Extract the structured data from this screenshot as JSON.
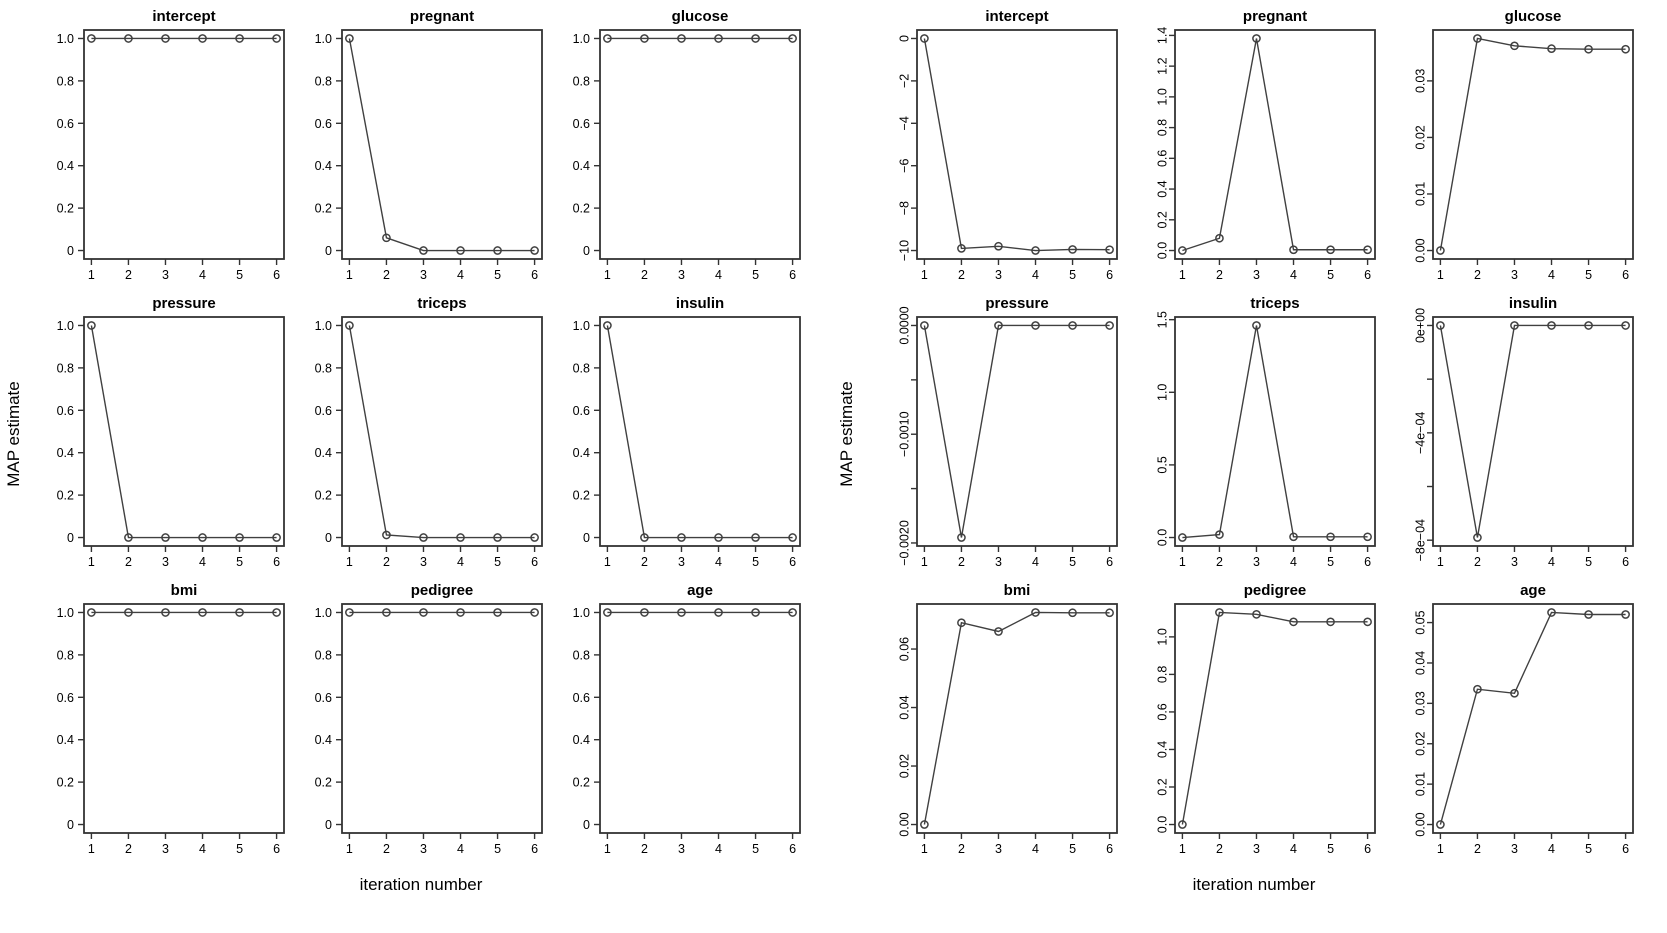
{
  "colors": {
    "line": "#404040",
    "frame": "#333333",
    "text": "#000000",
    "background": "#ffffff"
  },
  "chart_data": [
    {
      "id": "left-figure",
      "type": "line",
      "xlabel": "iteration number",
      "ylabel": "MAP estimate",
      "x": [
        1,
        2,
        3,
        4,
        5,
        6
      ],
      "xticks": [
        "1",
        "2",
        "3",
        "4",
        "5",
        "6"
      ],
      "ytick_style": "horizontal",
      "grid": false,
      "legend": null,
      "panels": [
        {
          "title": "intercept",
          "ylim": [
            0,
            1
          ],
          "yticks": [
            [
              0,
              "0"
            ],
            [
              0.2,
              "0.2"
            ],
            [
              0.4,
              "0.4"
            ],
            [
              0.6,
              "0.6"
            ],
            [
              0.8,
              "0.8"
            ],
            [
              1,
              "1.0"
            ]
          ],
          "values": [
            1,
            1,
            1,
            1,
            1,
            1
          ]
        },
        {
          "title": "pregnant",
          "ylim": [
            0,
            1
          ],
          "yticks": [
            [
              0,
              "0"
            ],
            [
              0.2,
              "0.2"
            ],
            [
              0.4,
              "0.4"
            ],
            [
              0.6,
              "0.6"
            ],
            [
              0.8,
              "0.8"
            ],
            [
              1,
              "1.0"
            ]
          ],
          "values": [
            1,
            0.06,
            0,
            0,
            0,
            0
          ]
        },
        {
          "title": "glucose",
          "ylim": [
            0,
            1
          ],
          "yticks": [
            [
              0,
              "0"
            ],
            [
              0.2,
              "0.2"
            ],
            [
              0.4,
              "0.4"
            ],
            [
              0.6,
              "0.6"
            ],
            [
              0.8,
              "0.8"
            ],
            [
              1,
              "1.0"
            ]
          ],
          "values": [
            1,
            1,
            1,
            1,
            1,
            1
          ]
        },
        {
          "title": "pressure",
          "ylim": [
            0,
            1
          ],
          "yticks": [
            [
              0,
              "0"
            ],
            [
              0.2,
              "0.2"
            ],
            [
              0.4,
              "0.4"
            ],
            [
              0.6,
              "0.6"
            ],
            [
              0.8,
              "0.8"
            ],
            [
              1,
              "1.0"
            ]
          ],
          "values": [
            1,
            0,
            0,
            0,
            0,
            0
          ]
        },
        {
          "title": "triceps",
          "ylim": [
            0,
            1
          ],
          "yticks": [
            [
              0,
              "0"
            ],
            [
              0.2,
              "0.2"
            ],
            [
              0.4,
              "0.4"
            ],
            [
              0.6,
              "0.6"
            ],
            [
              0.8,
              "0.8"
            ],
            [
              1,
              "1.0"
            ]
          ],
          "values": [
            1,
            0.012,
            0,
            0,
            0,
            0
          ]
        },
        {
          "title": "insulin",
          "ylim": [
            0,
            1
          ],
          "yticks": [
            [
              0,
              "0"
            ],
            [
              0.2,
              "0.2"
            ],
            [
              0.4,
              "0.4"
            ],
            [
              0.6,
              "0.6"
            ],
            [
              0.8,
              "0.8"
            ],
            [
              1,
              "1.0"
            ]
          ],
          "values": [
            1,
            0,
            0,
            0,
            0,
            0
          ]
        },
        {
          "title": "bmi",
          "ylim": [
            0,
            1
          ],
          "yticks": [
            [
              0,
              "0"
            ],
            [
              0.2,
              "0.2"
            ],
            [
              0.4,
              "0.4"
            ],
            [
              0.6,
              "0.6"
            ],
            [
              0.8,
              "0.8"
            ],
            [
              1,
              "1.0"
            ]
          ],
          "values": [
            1,
            1,
            1,
            1,
            1,
            1
          ]
        },
        {
          "title": "pedigree",
          "ylim": [
            0,
            1
          ],
          "yticks": [
            [
              0,
              "0"
            ],
            [
              0.2,
              "0.2"
            ],
            [
              0.4,
              "0.4"
            ],
            [
              0.6,
              "0.6"
            ],
            [
              0.8,
              "0.8"
            ],
            [
              1,
              "1.0"
            ]
          ],
          "values": [
            1,
            1,
            1,
            1,
            1,
            1
          ]
        },
        {
          "title": "age",
          "ylim": [
            0,
            1
          ],
          "yticks": [
            [
              0,
              "0"
            ],
            [
              0.2,
              "0.2"
            ],
            [
              0.4,
              "0.4"
            ],
            [
              0.6,
              "0.6"
            ],
            [
              0.8,
              "0.8"
            ],
            [
              1,
              "1.0"
            ]
          ],
          "values": [
            1,
            1,
            1,
            1,
            1,
            1
          ]
        }
      ]
    },
    {
      "id": "right-figure",
      "type": "line",
      "xlabel": "iteration number",
      "ylabel": "MAP estimate",
      "x": [
        1,
        2,
        3,
        4,
        5,
        6
      ],
      "xticks": [
        "1",
        "2",
        "3",
        "4",
        "5",
        "6"
      ],
      "ytick_style": "rotated",
      "grid": false,
      "legend": null,
      "panels": [
        {
          "title": "intercept",
          "ylim": [
            -10,
            0
          ],
          "yticks": [
            [
              0,
              "0"
            ],
            [
              -2,
              "−2"
            ],
            [
              -4,
              "−4"
            ],
            [
              -6,
              "−6"
            ],
            [
              -8,
              "−8"
            ],
            [
              -10,
              "−10"
            ]
          ],
          "values": [
            0,
            -9.9,
            -9.8,
            -10,
            -9.95,
            -9.96
          ]
        },
        {
          "title": "pregnant",
          "ylim": [
            0,
            1.38
          ],
          "yticks": [
            [
              0,
              "0.0"
            ],
            [
              0.2,
              "0.2"
            ],
            [
              0.4,
              "0.4"
            ],
            [
              0.6,
              "0.6"
            ],
            [
              0.8,
              "0.8"
            ],
            [
              1,
              "1.0"
            ],
            [
              1.2,
              "1.2"
            ],
            [
              1.4,
              "1.4"
            ]
          ],
          "values": [
            0,
            0.08,
            1.38,
            0.005,
            0.005,
            0.005
          ]
        },
        {
          "title": "glucose",
          "ylim": [
            0,
            0.0375
          ],
          "yticks": [
            [
              0,
              "0.00"
            ],
            [
              0.01,
              "0.01"
            ],
            [
              0.02,
              "0.02"
            ],
            [
              0.03,
              "0.03"
            ]
          ],
          "values": [
            0,
            0.0375,
            0.0362,
            0.0357,
            0.0356,
            0.0356
          ]
        },
        {
          "title": "pressure",
          "ylim": [
            -0.00195,
            0
          ],
          "yticks": [
            [
              0,
              "0.0000"
            ],
            [
              -0.0005,
              ""
            ],
            [
              -0.001,
              "−0.0010"
            ],
            [
              -0.0015,
              ""
            ],
            [
              -0.002,
              "−0.0020"
            ]
          ],
          "values": [
            0,
            -0.00195,
            0,
            0,
            0,
            0
          ]
        },
        {
          "title": "triceps",
          "ylim": [
            0,
            1.46
          ],
          "yticks": [
            [
              0,
              "0.0"
            ],
            [
              0.5,
              "0.5"
            ],
            [
              1,
              "1.0"
            ],
            [
              1.5,
              "1.5"
            ]
          ],
          "values": [
            0,
            0.02,
            1.46,
            0.005,
            0.005,
            0.005
          ]
        },
        {
          "title": "insulin",
          "ylim": [
            -0.00079,
            0
          ],
          "yticks": [
            [
              0,
              "0e+00"
            ],
            [
              -0.0002,
              ""
            ],
            [
              -0.0004,
              "−4e−04"
            ],
            [
              -0.0006,
              ""
            ],
            [
              -0.0008,
              "−8e−04"
            ]
          ],
          "values": [
            0,
            -0.00079,
            0,
            0,
            0,
            0
          ]
        },
        {
          "title": "bmi",
          "ylim": [
            0,
            0.0725
          ],
          "yticks": [
            [
              0,
              "0.00"
            ],
            [
              0.02,
              "0.02"
            ],
            [
              0.04,
              "0.04"
            ],
            [
              0.06,
              "0.06"
            ]
          ],
          "values": [
            0,
            0.069,
            0.066,
            0.0725,
            0.0724,
            0.0724
          ]
        },
        {
          "title": "pedigree",
          "ylim": [
            0,
            1.13
          ],
          "yticks": [
            [
              0,
              "0.0"
            ],
            [
              0.2,
              "0.2"
            ],
            [
              0.4,
              "0.4"
            ],
            [
              0.6,
              "0.6"
            ],
            [
              0.8,
              "0.8"
            ],
            [
              1,
              "1.0"
            ]
          ],
          "values": [
            0,
            1.13,
            1.12,
            1.08,
            1.08,
            1.08
          ]
        },
        {
          "title": "age",
          "ylim": [
            0,
            0.0525
          ],
          "yticks": [
            [
              0,
              "0.00"
            ],
            [
              0.01,
              "0.01"
            ],
            [
              0.02,
              "0.02"
            ],
            [
              0.03,
              "0.03"
            ],
            [
              0.04,
              "0.04"
            ],
            [
              0.05,
              "0.05"
            ]
          ],
          "values": [
            0,
            0.0335,
            0.0325,
            0.0525,
            0.052,
            0.052
          ]
        }
      ]
    }
  ]
}
